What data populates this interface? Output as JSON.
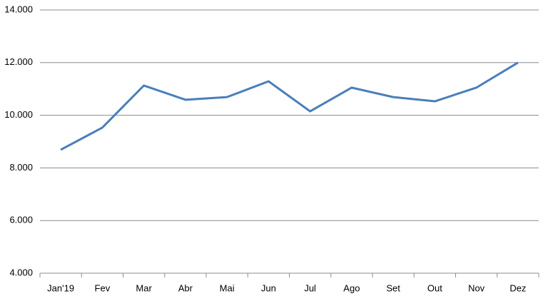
{
  "chart_data": {
    "type": "line",
    "categories": [
      "Jan'19",
      "Fev",
      "Mar",
      "Abr",
      "Mai",
      "Jun",
      "Jul",
      "Ago",
      "Set",
      "Out",
      "Nov",
      "Dez"
    ],
    "series": [
      {
        "color": "#4a7ebb",
        "values": [
          8690,
          9530,
          11130,
          10590,
          10690,
          11290,
          10150,
          11050,
          10690,
          10530,
          11050,
          12000
        ]
      }
    ],
    "ylim": [
      4000,
      14000
    ],
    "yticks": [
      {
        "value": 4000,
        "label": "4.000"
      },
      {
        "value": 6000,
        "label": "6.000"
      },
      {
        "value": 8000,
        "label": "8.000"
      },
      {
        "value": 10000,
        "label": "10.000"
      },
      {
        "value": 12000,
        "label": "12.000"
      },
      {
        "value": 14000,
        "label": "14.000"
      }
    ],
    "grid": true
  }
}
